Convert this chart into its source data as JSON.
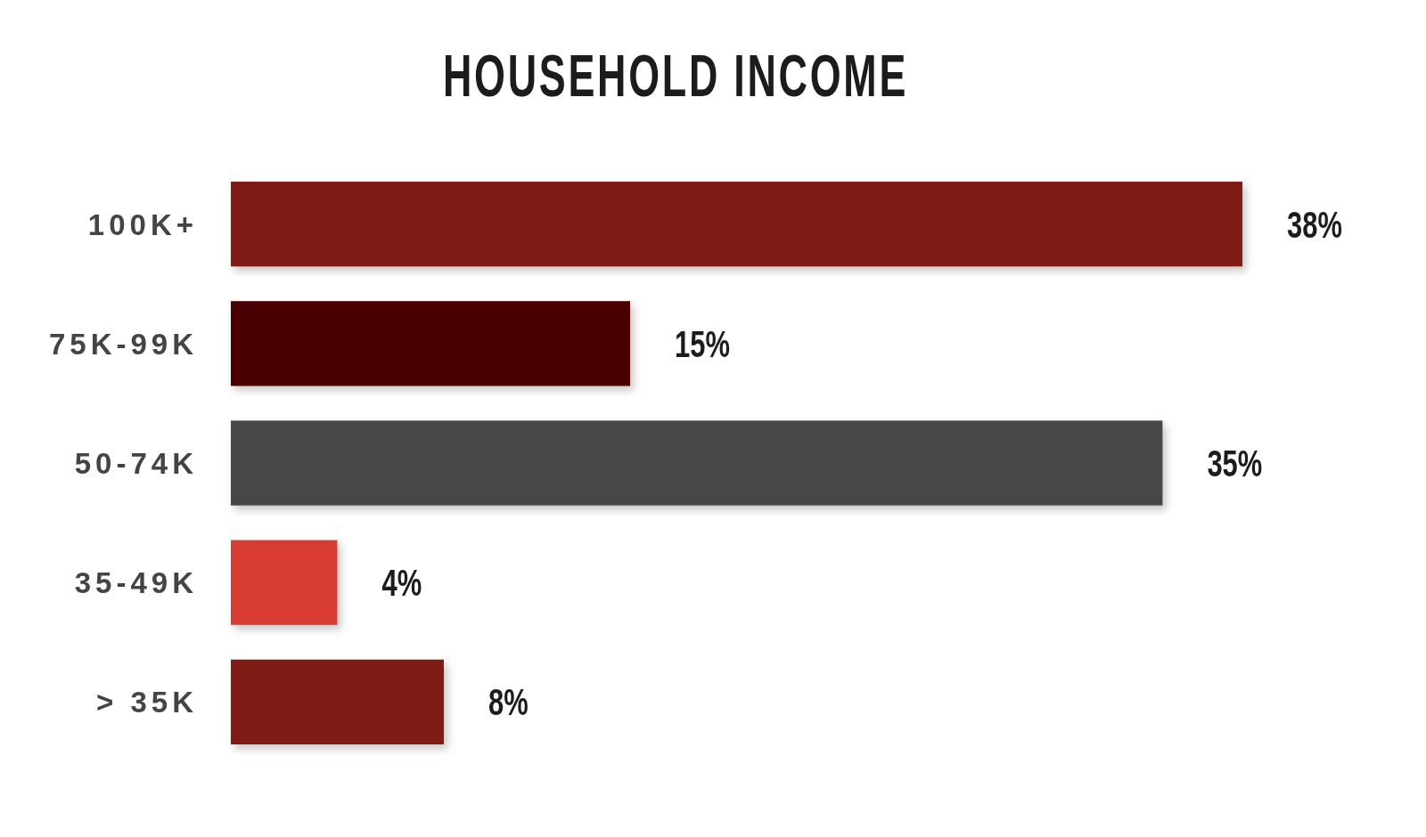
{
  "chart_data": {
    "type": "bar",
    "orientation": "horizontal",
    "title": "HOUSEHOLD INCOME",
    "categories": [
      "100K+",
      "75K-99K",
      "50-74K",
      "35-49K",
      "> 35K"
    ],
    "values": [
      38,
      15,
      35,
      4,
      8
    ],
    "colors": [
      "#7f1a12",
      "#4a0000",
      "#474747",
      "#d83a30",
      "#7f1a12"
    ],
    "value_labels": [
      "38%",
      "15%",
      "35%",
      "4%",
      "8%"
    ]
  }
}
